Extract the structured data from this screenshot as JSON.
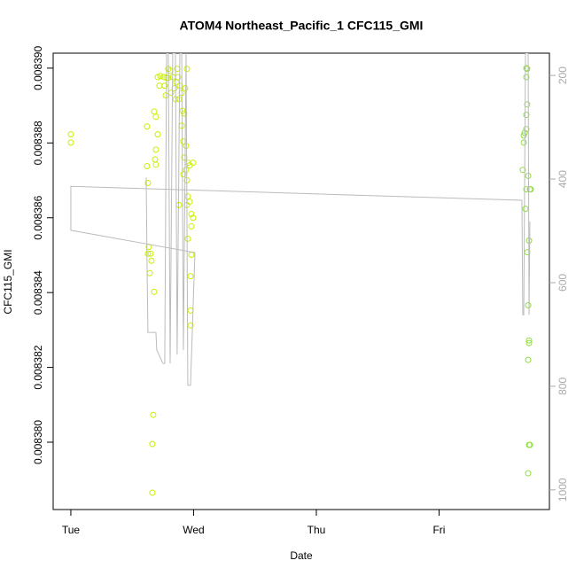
{
  "chart_data": {
    "type": "scatter",
    "title": "ATOM4 Northeast_Pacific_1 CFC115_GMI",
    "xlabel": "Date",
    "ylabel": "CFC115_GMI",
    "xlim": [
      -0.144,
      3.899
    ],
    "xticks": [
      {
        "value": 0,
        "label": "Tue"
      },
      {
        "value": 1,
        "label": "Wed"
      },
      {
        "value": 2,
        "label": "Thu"
      },
      {
        "value": 3,
        "label": "Fri"
      }
    ],
    "ylim": [
      0.0083782,
      0.0083904
    ],
    "yticks": [
      {
        "value": 0.00838,
        "label": "0.008380"
      },
      {
        "value": 0.008382,
        "label": "0.008382"
      },
      {
        "value": 0.008384,
        "label": "0.008384"
      },
      {
        "value": 0.008386,
        "label": "0.008386"
      },
      {
        "value": 0.008388,
        "label": "0.008388"
      },
      {
        "value": 0.00839,
        "label": "0.008390"
      }
    ],
    "y2lim": [
      1038,
      157
    ],
    "y2ticks": [
      200,
      400,
      600,
      800,
      1000
    ],
    "series": [
      {
        "color": "#c8f000",
        "x": [
          0,
          0,
          0.621,
          0.621,
          0.628,
          0.635,
          0.65,
          0.628,
          0.657,
          0.643,
          0.679,
          0.671,
          0.664,
          0.664,
          0.679,
          0.693,
          0.708,
          0.693,
          0.686,
          0.693,
          0.708,
          0.729,
          0.758,
          0.78,
          0.794,
          0.765,
          0.773,
          0.794,
          0.809,
          0.83,
          0.845,
          0.859,
          0.874,
          0.888,
          0.903,
          0.722,
          0.816,
          0.852,
          0.881,
          0.91,
          0.924,
          0.903,
          0.917,
          0.939,
          0.924,
          0.953,
          0.939,
          0.917,
          0.968,
          0.996,
          0.946,
          0.953,
          0.946,
          0.968,
          0.982,
          0.996,
          0.982,
          0.953,
          0.982,
          0.975,
          0.975,
          0.975,
          0.881,
          0.931,
          0.946,
          0.866
        ],
        "values": [
          0.00838823,
          0.00838801,
          0.00838844,
          0.00838738,
          0.00838693,
          0.00838522,
          0.00838504,
          0.00838504,
          0.00838485,
          0.00838452,
          0.00838402,
          0.00838073,
          0.00837995,
          0.00837865,
          0.00838884,
          0.0083887,
          0.00838823,
          0.00838782,
          0.00838756,
          0.00838742,
          0.00838976,
          0.00838979,
          0.00838976,
          0.00838974,
          0.00838974,
          0.00838953,
          0.00838927,
          0.00838998,
          0.00838993,
          0.00838976,
          0.00838946,
          0.00838962,
          0.00838976,
          0.00838953,
          0.00838934,
          0.00838953,
          0.00838934,
          0.00838917,
          0.00838917,
          0.00838886,
          0.00838879,
          0.00838846,
          0.00838804,
          0.00838792,
          0.00838761,
          0.00838747,
          0.00838728,
          0.00838716,
          0.0083874,
          0.00838747,
          0.008387,
          0.00838657,
          0.00838634,
          0.00838643,
          0.0083861,
          0.008386,
          0.00838577,
          0.00838544,
          0.00838501,
          0.00838444,
          0.00838352,
          0.00838312,
          0.00838634,
          0.00838946,
          0.00838998,
          0.00838998
        ]
      },
      {
        "color": "#8ee03a",
        "x": [
          3.682,
          3.69,
          3.697,
          3.69,
          3.704,
          3.711,
          3.726,
          3.74,
          3.718,
          3.733,
          3.726,
          3.733,
          3.733,
          3.726,
          3.733,
          3.74,
          3.726,
          3.711,
          3.711,
          3.718,
          3.718,
          3.711,
          3.711,
          3.747
        ],
        "values": [
          0.00838728,
          0.0083882,
          0.00838827,
          0.00838801,
          0.00838624,
          0.00838676,
          0.00838712,
          0.00838676,
          0.00838508,
          0.00838539,
          0.00838366,
          0.00838265,
          0.00838272,
          0.0083822,
          0.00837993,
          0.00837993,
          0.00837917,
          0.00838837,
          0.00838875,
          0.00838903,
          0.00838998,
          0.00839,
          0.00838976,
          0.00838676
        ]
      },
      {
        "type": "line",
        "axis": "y2",
        "color": "#bbbbbb",
        "x": [
          0.614,
          0.621,
          0.628,
          0.693,
          0.7,
          0.751,
          0.765,
          0.78,
          0.794,
          0.809,
          0.83,
          0.852,
          0.866,
          0.888,
          0.903,
          0.917,
          0.939,
          0.953,
          0.975,
          1.011,
          0,
          0,
          3.675,
          3.682,
          3.69,
          3.704,
          3.726,
          3.733,
          3.74
        ],
        "values": [
          397,
          568,
          696,
          696,
          730,
          756,
          756,
          157,
          157,
          756,
          157,
          157,
          739,
          157,
          157,
          730,
          157,
          798,
          798,
          542,
          499,
          414,
          441,
          662,
          662,
          157,
          157,
          662,
          482
        ]
      }
    ]
  }
}
